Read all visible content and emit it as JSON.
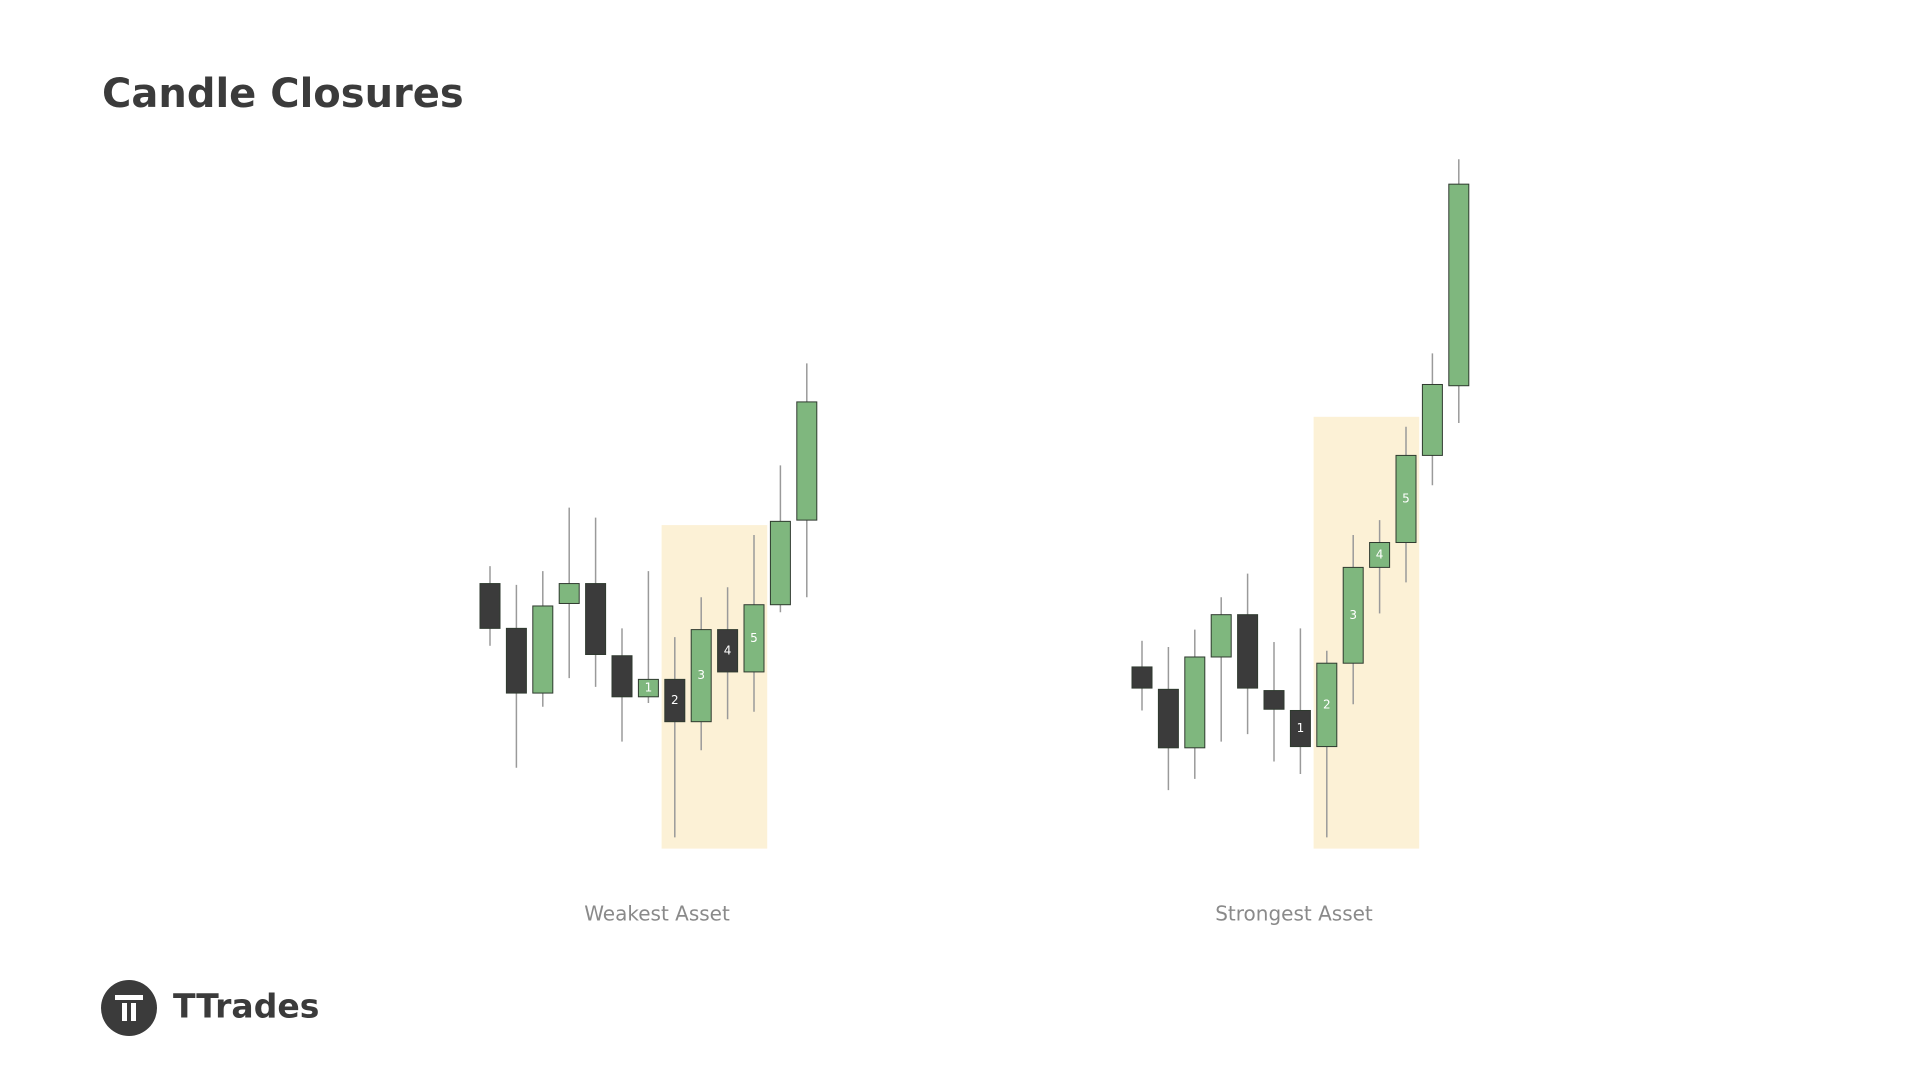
{
  "title": "Candle Closures",
  "brand": "TTrades",
  "chart_data": [
    {
      "type": "candlestick",
      "xlabel": "Weakest Asset",
      "open": [
        231,
        195,
        143,
        215,
        231,
        173,
        140,
        154,
        120,
        194,
        160,
        214,
        282
      ],
      "high": [
        245,
        230,
        241,
        292,
        284,
        195,
        241,
        188,
        220,
        228,
        270,
        326,
        408
      ],
      "low": [
        181,
        83,
        132,
        155,
        148,
        104,
        135,
        27,
        97,
        122,
        128,
        208,
        220
      ],
      "close": [
        195,
        143,
        213,
        231,
        174,
        140,
        154,
        120,
        194,
        160,
        214,
        281,
        377
      ],
      "labels": [
        null,
        null,
        null,
        null,
        null,
        null,
        "1",
        "2",
        "3",
        "4",
        "5",
        null,
        null
      ],
      "ylim": [
        0,
        700
      ],
      "up_color": "#7fb77e",
      "down_color": "#3b3b3b",
      "highlight_color": "#fbefcf",
      "highlight": {
        "candles": [
          7,
          10
        ],
        "range": [
          18,
          278
        ]
      }
    },
    {
      "type": "candlestick",
      "xlabel": "Strongest Asset",
      "open": [
        164,
        146,
        99,
        172,
        206,
        145,
        129,
        100,
        167,
        244,
        264,
        334,
        390
      ],
      "high": [
        185,
        180,
        194,
        220,
        239,
        184,
        195,
        177,
        270,
        282,
        357,
        416,
        572
      ],
      "low": [
        129,
        65,
        74,
        104,
        110,
        88,
        78,
        27,
        134,
        207,
        232,
        310,
        360
      ],
      "close": [
        147,
        99,
        172,
        206,
        147,
        130,
        100,
        167,
        244,
        264,
        334,
        391,
        552
      ],
      "labels": [
        null,
        null,
        null,
        null,
        null,
        null,
        "1",
        "2",
        "3",
        "4",
        "5",
        null,
        null
      ],
      "ylim": [
        0,
        700
      ],
      "up_color": "#7fb77e",
      "down_color": "#3b3b3b",
      "highlight_color": "#fbefcf",
      "highlight": {
        "candles": [
          7,
          10
        ],
        "range": [
          18,
          365
        ]
      }
    }
  ]
}
